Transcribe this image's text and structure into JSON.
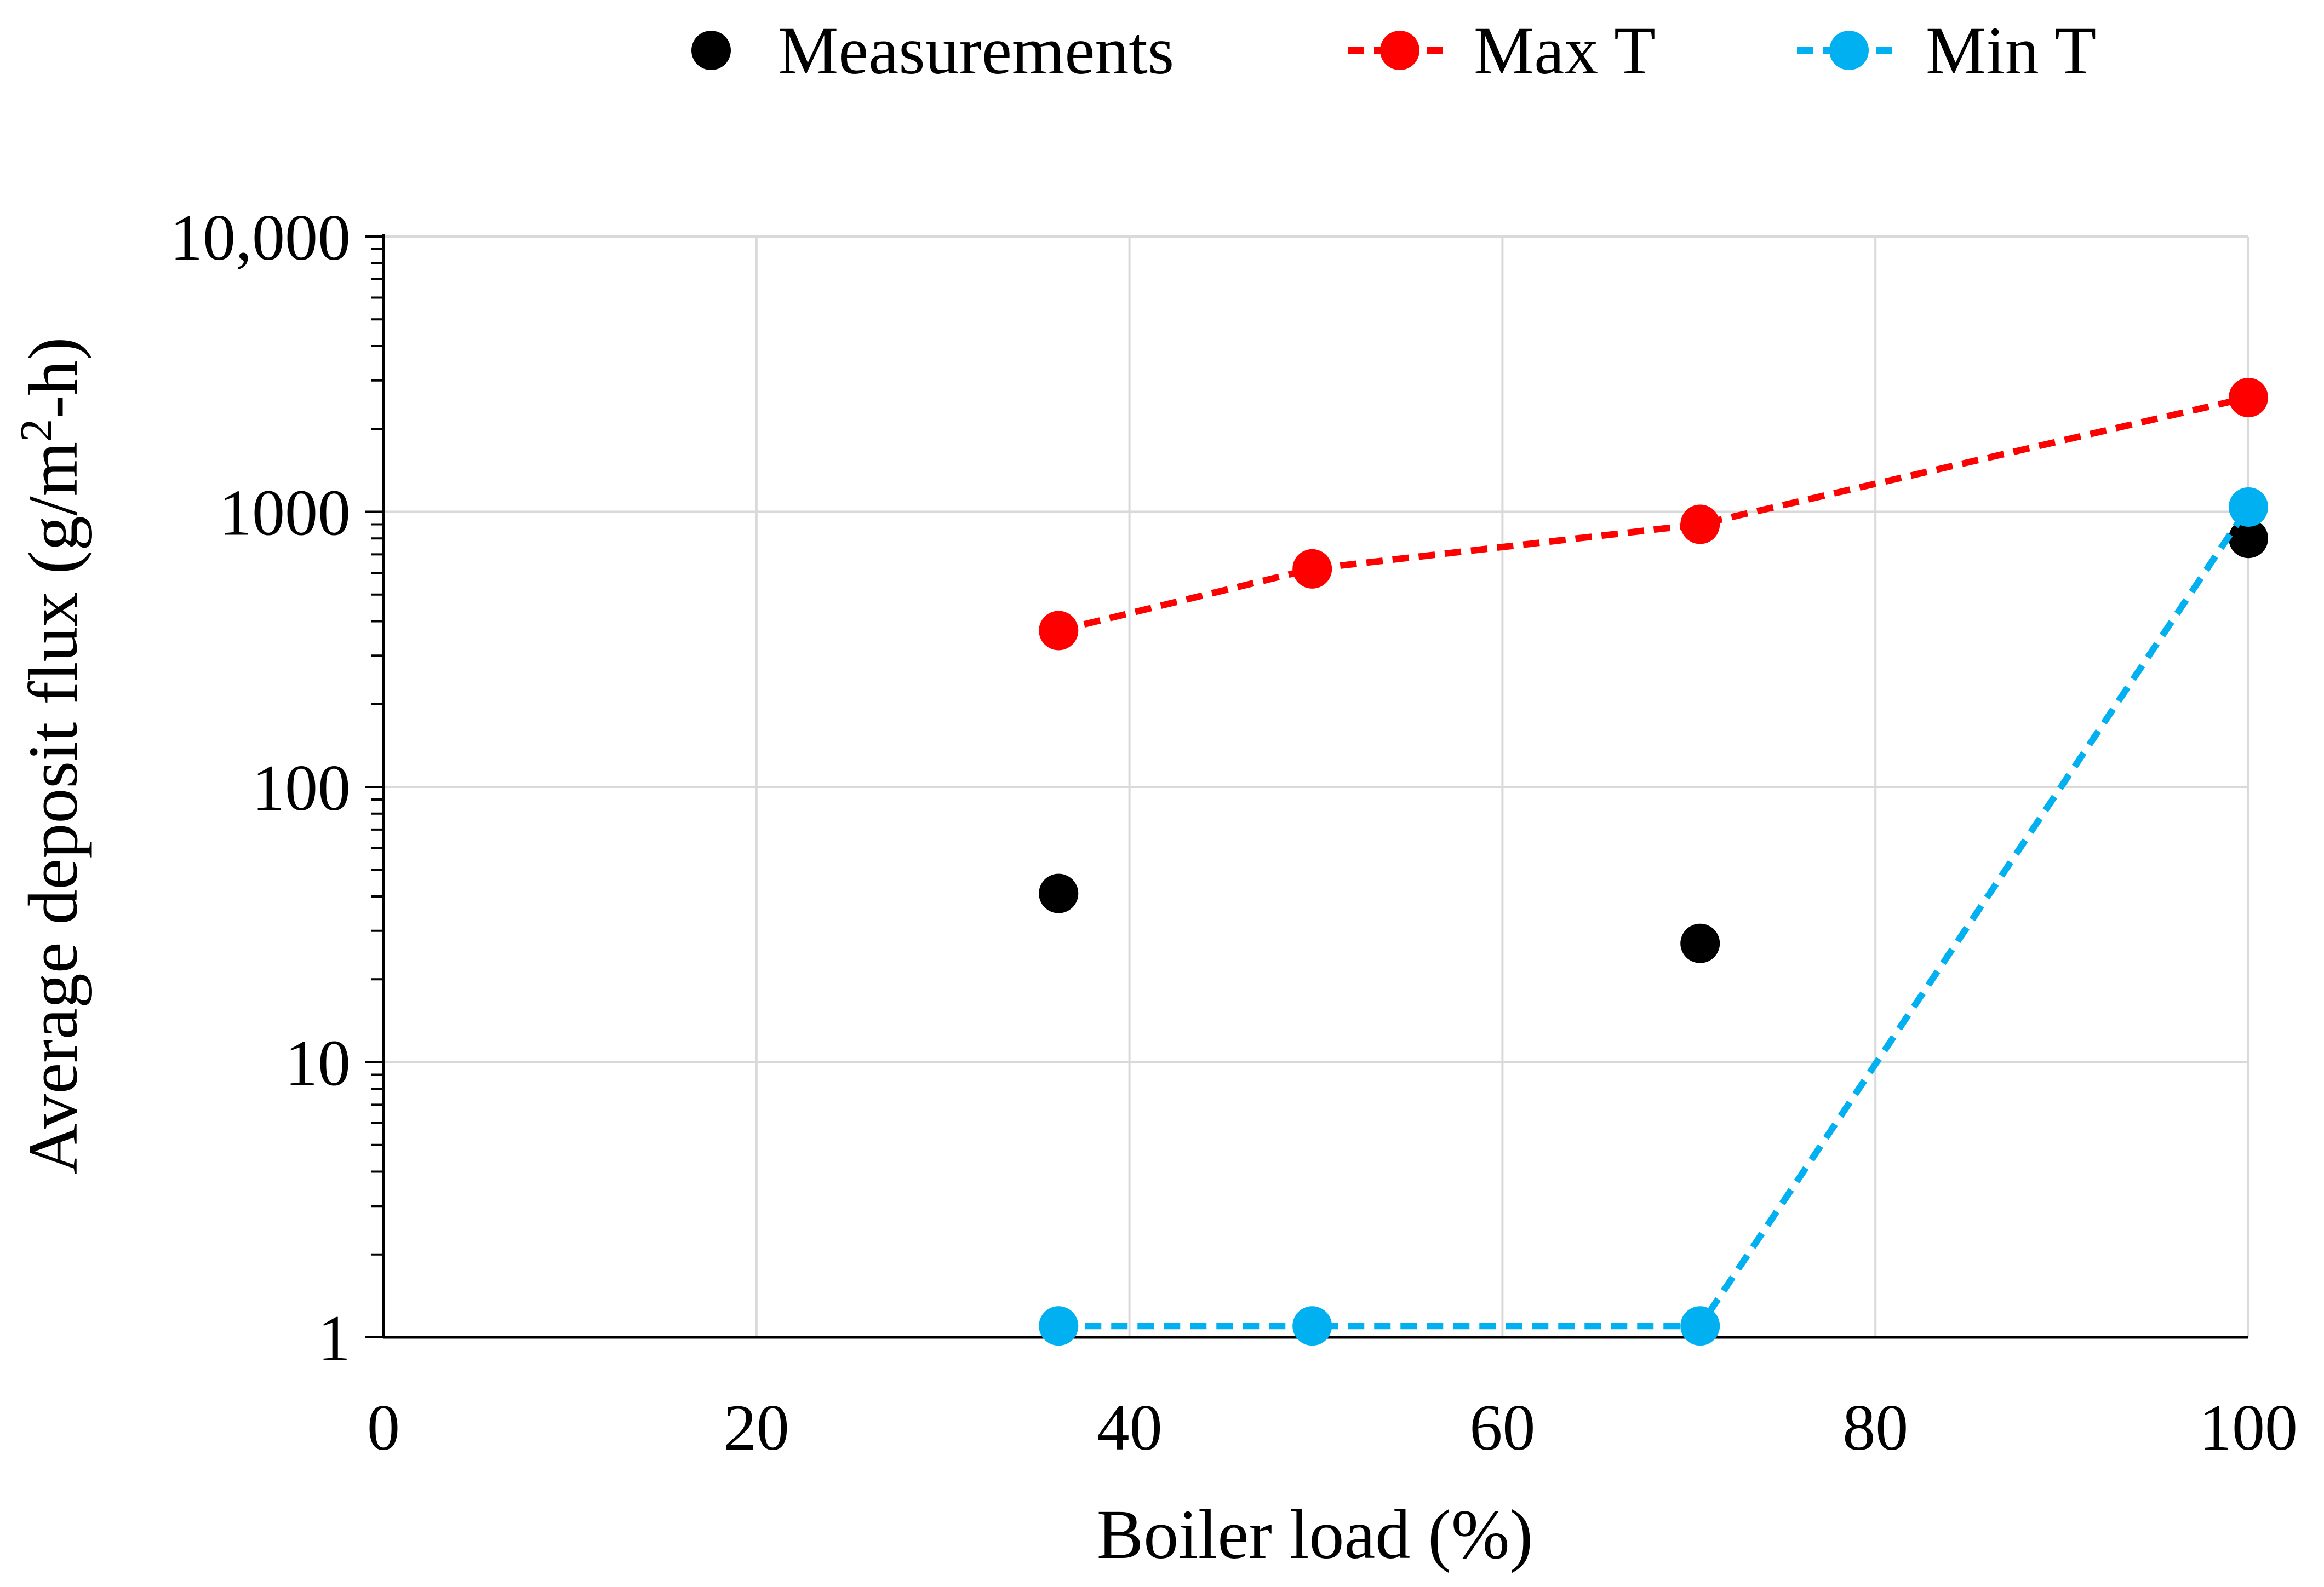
{
  "chart_data": {
    "type": "scatter",
    "title": "",
    "xlabel": "Boiler load (%)",
    "ylabel_parts": {
      "main": "Average deposit flux (g/m",
      "sup": "2",
      "tail": "-h)"
    },
    "x_range": [
      0,
      100
    ],
    "y_range": [
      1,
      10000
    ],
    "y_scale": "log",
    "grid": true,
    "legend_position": "top-center",
    "x_ticks": [
      {
        "value": 0,
        "label": "0"
      },
      {
        "value": 20,
        "label": "20"
      },
      {
        "value": 40,
        "label": "40"
      },
      {
        "value": 60,
        "label": "60"
      },
      {
        "value": 80,
        "label": "80"
      },
      {
        "value": 100,
        "label": "100"
      }
    ],
    "y_ticks": [
      {
        "value": 1,
        "label": "1"
      },
      {
        "value": 10,
        "label": "10"
      },
      {
        "value": 100,
        "label": "100"
      },
      {
        "value": 1000,
        "label": "1000"
      },
      {
        "value": 10000,
        "label": "10,000"
      }
    ],
    "series": [
      {
        "key": "measurements",
        "name": "Measurements",
        "color": "#000000",
        "line": false,
        "points": [
          {
            "x": 36.2,
            "y": 41
          },
          {
            "x": 70.6,
            "y": 27
          },
          {
            "x": 100,
            "y": 800
          }
        ]
      },
      {
        "key": "max-t",
        "name": "Max T",
        "color": "#ff0000",
        "line": true,
        "dashed": true,
        "points": [
          {
            "x": 36.2,
            "y": 370
          },
          {
            "x": 49.8,
            "y": 620
          },
          {
            "x": 70.6,
            "y": 900
          },
          {
            "x": 100,
            "y": 2600
          }
        ]
      },
      {
        "key": "min-t",
        "name": "Min T",
        "color": "#00b0f0",
        "line": true,
        "dashed": true,
        "points": [
          {
            "x": 36.2,
            "y": 1.1
          },
          {
            "x": 49.8,
            "y": 1.1
          },
          {
            "x": 70.6,
            "y": 1.1
          },
          {
            "x": 100,
            "y": 1040
          }
        ]
      }
    ]
  }
}
